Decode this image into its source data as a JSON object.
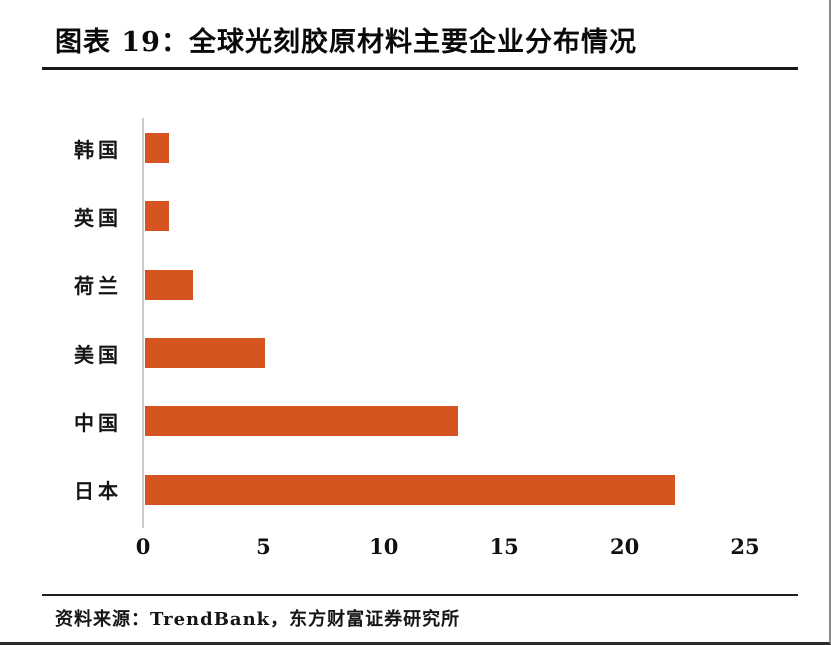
{
  "figure": {
    "title": "图表 19：全球光刻胶原材料主要企业分布情况",
    "source": "资料来源：TrendBank，东方财富证券研究所"
  },
  "colors": {
    "bar": "#D6541F",
    "axis_line": "#CBCBCB",
    "rule": "#1A1A1A"
  },
  "chart_data": {
    "type": "bar",
    "orientation": "horizontal",
    "title": "全球光刻胶原材料主要企业分布情况",
    "categories": [
      "韩国",
      "英国",
      "荷兰",
      "美国",
      "中国",
      "日本"
    ],
    "values": [
      1,
      1,
      2,
      5,
      13,
      22
    ],
    "xlabel": "",
    "ylabel": "",
    "xlim": [
      0,
      25
    ],
    "xticks": [
      0,
      5,
      10,
      15,
      20,
      25
    ],
    "grid": false,
    "legend": false,
    "bar_color": "#D6541F"
  }
}
